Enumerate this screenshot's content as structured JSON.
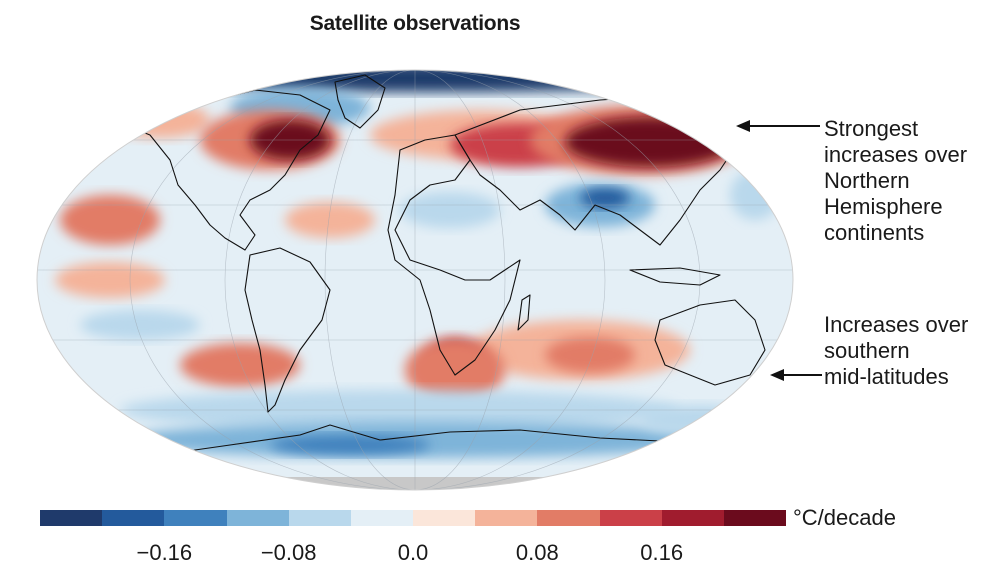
{
  "title": "Satellite observations",
  "annotations": {
    "strongest": [
      "Strongest",
      "increases over",
      "Northern",
      "Hemisphere",
      "continents"
    ],
    "southern": [
      "Increases over",
      "southern",
      "mid-latitudes"
    ]
  },
  "legend": {
    "unit": "°C/decade",
    "colors": [
      "#1f3a6b",
      "#235a9c",
      "#3f81bd",
      "#7eb4d9",
      "#b9d8ec",
      "#e4eff6",
      "#fbe6da",
      "#f4b39a",
      "#e27c66",
      "#cb4048",
      "#a01c2e",
      "#6b0b1d"
    ],
    "ticks": [
      "−0.16",
      "−0.08",
      "0.0",
      "0.08",
      "0.16"
    ],
    "range": [
      -0.24,
      0.24
    ]
  },
  "regions": [
    {
      "name": "north-america-warming",
      "value": 0.2
    },
    {
      "name": "eurasia-warming",
      "value": 0.22
    },
    {
      "name": "southern-africa-warming",
      "value": 0.16
    },
    {
      "name": "southern-ocean-cooling",
      "value": -0.12
    },
    {
      "name": "arctic-cooling",
      "value": -0.2
    },
    {
      "name": "central-asia-cooling",
      "value": -0.14
    }
  ]
}
